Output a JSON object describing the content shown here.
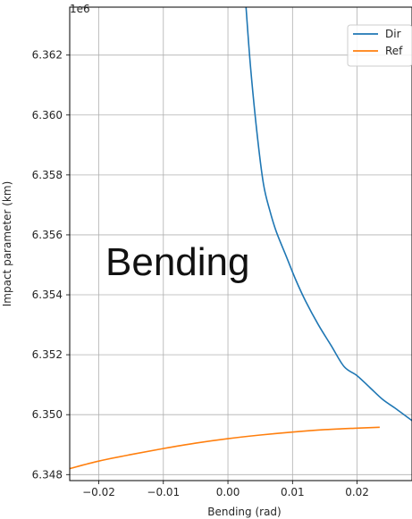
{
  "chart_data": {
    "type": "line",
    "title": "",
    "xlabel": "Bending (rad)",
    "ylabel": "Impact parameter (km)",
    "y_offset_text": "1e6",
    "overlay_text": "Bending",
    "xlim": [
      -0.0245,
      0.0285
    ],
    "ylim": [
      6347.8,
      6363.6
    ],
    "x_ticks": [
      -0.02,
      -0.01,
      0.0,
      0.01,
      0.02
    ],
    "x_tick_labels": [
      "−0.02",
      "−0.01",
      "0.00",
      "0.01",
      "0.02"
    ],
    "y_ticks": [
      6348,
      6350,
      6352,
      6354,
      6356,
      6358,
      6360,
      6362
    ],
    "y_tick_labels": [
      "6.348",
      "6.350",
      "6.352",
      "6.354",
      "6.356",
      "6.358",
      "6.360",
      "6.362"
    ],
    "grid": true,
    "legend_position": "top-right",
    "series": [
      {
        "name": "Dir",
        "color": "#1f77b4",
        "x": [
          0.0028,
          0.0035,
          0.0045,
          0.0055,
          0.0065,
          0.0075,
          0.009,
          0.0105,
          0.012,
          0.014,
          0.016,
          0.018,
          0.02,
          0.022,
          0.024,
          0.026,
          0.0285
        ],
        "y": [
          6363.6,
          6361.6,
          6359.4,
          6357.7,
          6356.8,
          6356.1,
          6355.3,
          6354.5,
          6353.8,
          6353.0,
          6352.3,
          6351.6,
          6351.3,
          6350.9,
          6350.5,
          6350.2,
          6349.8
        ]
      },
      {
        "name": "Ref",
        "color": "#ff7f0e",
        "x": [
          -0.0245,
          -0.02,
          -0.015,
          -0.01,
          -0.005,
          0.0,
          0.005,
          0.01,
          0.015,
          0.02,
          0.0235
        ],
        "y": [
          6348.2,
          6348.45,
          6348.67,
          6348.87,
          6349.05,
          6349.2,
          6349.32,
          6349.42,
          6349.5,
          6349.55,
          6349.58
        ]
      }
    ]
  }
}
